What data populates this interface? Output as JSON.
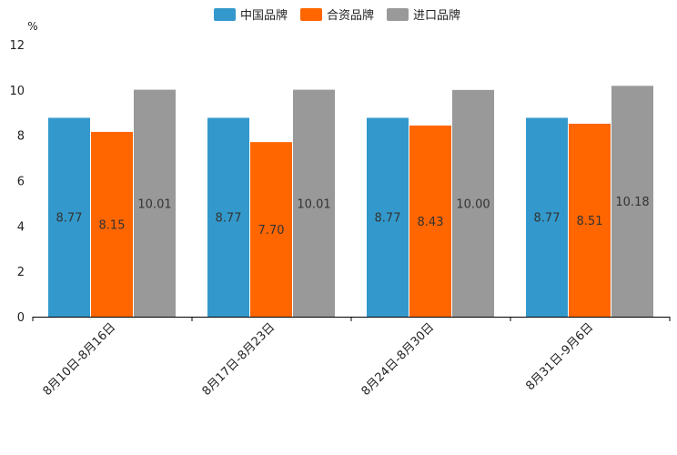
{
  "chart_data": {
    "type": "bar",
    "title": "",
    "xlabel": "",
    "ylabel": "%",
    "ylim": [
      0,
      12
    ],
    "yticks": [
      "0",
      "2",
      "4",
      "6",
      "8",
      "10",
      "12"
    ],
    "categories": [
      "8月10日-8月16日",
      "8月17日-8月23日",
      "8月24日-8月30日",
      "8月31日-9月6日"
    ],
    "series": [
      {
        "name": "中国品牌",
        "color": "#3399cc",
        "values": [
          8.77,
          8.77,
          8.77,
          8.77
        ],
        "labels": [
          "8.77",
          "8.77",
          "8.77",
          "8.77"
        ]
      },
      {
        "name": "合资品牌",
        "color": "#ff6600",
        "values": [
          8.15,
          7.7,
          8.43,
          8.51
        ],
        "labels": [
          "8.15",
          "7.70",
          "8.43",
          "8.51"
        ]
      },
      {
        "name": "进口品牌",
        "color": "#999999",
        "values": [
          10.01,
          10.01,
          10.0,
          10.18
        ],
        "labels": [
          "10.01",
          "10.01",
          "10.00",
          "10.18"
        ]
      }
    ],
    "legend": "top-center",
    "grid": false
  }
}
